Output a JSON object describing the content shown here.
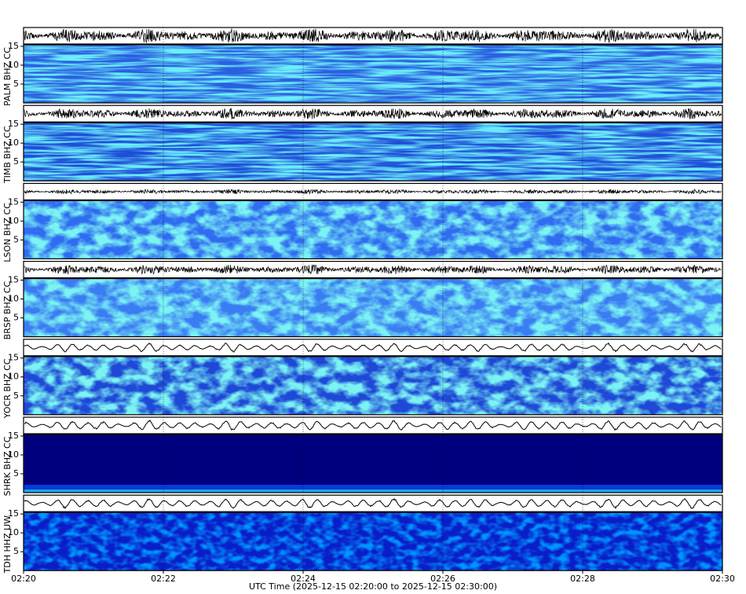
{
  "chart_data": {
    "type": "spectrogram",
    "stations": [
      "PALM BHZ CC",
      "TIMB BHZ CC",
      "LSON BHZ CC",
      "BRSP BHZ CC",
      "YOCR BHZ CC",
      "SHRK BHZ CC",
      "TDH HHZ UW"
    ],
    "xlabel": "UTC Time (2025-12-15 02:20:00 to 2025-12-15 02:30:00)",
    "xlim": [
      0,
      10
    ],
    "xticks": [
      {
        "value": 0,
        "label": "02:20"
      },
      {
        "value": 2,
        "label": "02:22"
      },
      {
        "value": 4,
        "label": "02:24"
      },
      {
        "value": 6,
        "label": "02:26"
      },
      {
        "value": 8,
        "label": "02:28"
      },
      {
        "value": 10,
        "label": "02:30"
      }
    ],
    "ylim": [
      0,
      15.4
    ],
    "yticks": [
      5,
      10,
      15
    ]
  }
}
